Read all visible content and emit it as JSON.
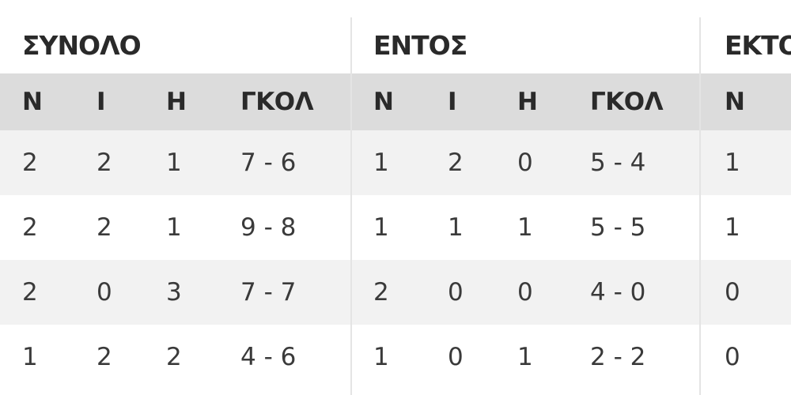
{
  "groups": {
    "total": "ΣΥΝΟΛΟ",
    "home": "ΕΝΤΟΣ",
    "away": "ΕΚΤΟ"
  },
  "columns": {
    "wins": "Ν",
    "draws": "Ι",
    "losses": "Η",
    "goals": "ΓΚΟΛ"
  },
  "rows": [
    {
      "total": [
        "2",
        "2",
        "1",
        "7 - 6"
      ],
      "home": [
        "1",
        "2",
        "0",
        "5 - 4"
      ],
      "away": [
        "1"
      ]
    },
    {
      "total": [
        "2",
        "2",
        "1",
        "9 - 8"
      ],
      "home": [
        "1",
        "1",
        "1",
        "5 - 5"
      ],
      "away": [
        "1"
      ]
    },
    {
      "total": [
        "2",
        "0",
        "3",
        "7 - 7"
      ],
      "home": [
        "2",
        "0",
        "0",
        "4 - 0"
      ],
      "away": [
        "0"
      ]
    },
    {
      "total": [
        "1",
        "2",
        "2",
        "4 - 6"
      ],
      "home": [
        "1",
        "0",
        "1",
        "2 - 2"
      ],
      "away": [
        "0"
      ]
    }
  ]
}
